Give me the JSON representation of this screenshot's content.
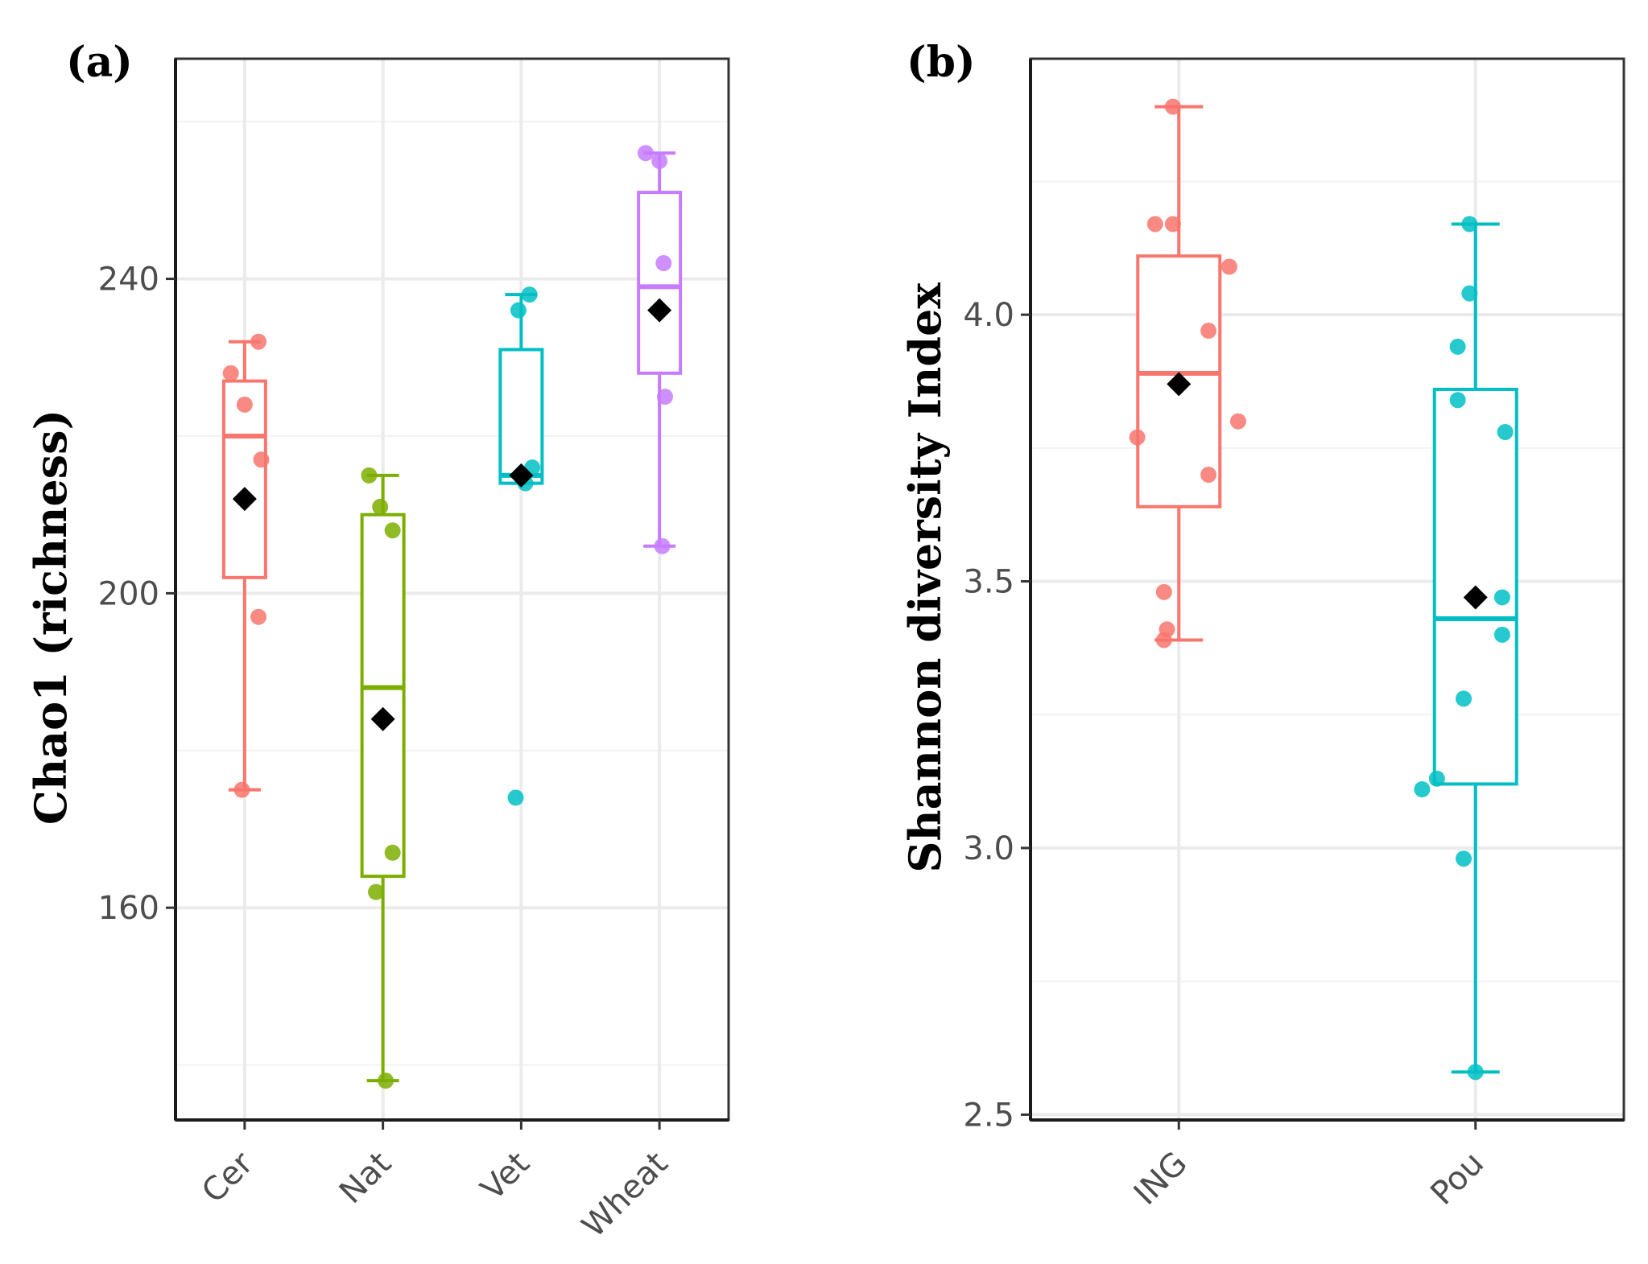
{
  "chart_data": [
    {
      "type": "box",
      "panel_label": "(a)",
      "title": "",
      "xlabel": "",
      "ylabel": "Chao1 (richness)",
      "ylim": [
        133,
        268
      ],
      "yticks": [
        160,
        200,
        240
      ],
      "grid": true,
      "categories": [
        "Cer",
        "Nat",
        "Vet",
        "Wheat"
      ],
      "colors": [
        "#F8766D",
        "#7CAE00",
        "#00BFC4",
        "#C77CFF"
      ],
      "boxes": [
        {
          "category": "Cer",
          "whisker_low": 175,
          "q1": 202,
          "median": 220,
          "q3": 227,
          "whisker_high": 232,
          "mean": 212
        },
        {
          "category": "Nat",
          "whisker_low": 138,
          "q1": 164,
          "median": 188,
          "q3": 210,
          "whisker_high": 215,
          "mean": 184
        },
        {
          "category": "Vet",
          "whisker_low": 214,
          "q1": 214,
          "median": 215,
          "q3": 231,
          "whisker_high": 238,
          "mean": 215
        },
        {
          "category": "Wheat",
          "whisker_low": 206,
          "q1": 228,
          "median": 239,
          "q3": 251,
          "whisker_high": 256,
          "mean": 236
        }
      ],
      "points": [
        {
          "category": "Cer",
          "y": 232,
          "jitter": 0.1
        },
        {
          "category": "Cer",
          "y": 228,
          "jitter": -0.1
        },
        {
          "category": "Cer",
          "y": 224,
          "jitter": 0.0
        },
        {
          "category": "Cer",
          "y": 217,
          "jitter": 0.12
        },
        {
          "category": "Cer",
          "y": 197,
          "jitter": 0.1
        },
        {
          "category": "Cer",
          "y": 175,
          "jitter": -0.02
        },
        {
          "category": "Nat",
          "y": 215,
          "jitter": -0.1
        },
        {
          "category": "Nat",
          "y": 211,
          "jitter": -0.02
        },
        {
          "category": "Nat",
          "y": 208,
          "jitter": 0.07
        },
        {
          "category": "Nat",
          "y": 167,
          "jitter": 0.07
        },
        {
          "category": "Nat",
          "y": 162,
          "jitter": -0.05
        },
        {
          "category": "Nat",
          "y": 138,
          "jitter": 0.02
        },
        {
          "category": "Vet",
          "y": 238,
          "jitter": 0.06
        },
        {
          "category": "Vet",
          "y": 236,
          "jitter": -0.02
        },
        {
          "category": "Vet",
          "y": 216,
          "jitter": 0.08
        },
        {
          "category": "Vet",
          "y": 214,
          "jitter": 0.03
        },
        {
          "category": "Vet",
          "y": 174,
          "jitter": -0.04
        },
        {
          "category": "Wheat",
          "y": 256,
          "jitter": -0.1
        },
        {
          "category": "Wheat",
          "y": 255,
          "jitter": 0.0
        },
        {
          "category": "Wheat",
          "y": 242,
          "jitter": 0.03
        },
        {
          "category": "Wheat",
          "y": 225,
          "jitter": 0.04
        },
        {
          "category": "Wheat",
          "y": 206,
          "jitter": 0.02
        }
      ]
    },
    {
      "type": "box",
      "panel_label": "(b)",
      "title": "",
      "xlabel": "",
      "ylabel": "Shannon diversity Index",
      "ylim": [
        2.49,
        4.48
      ],
      "yticks": [
        2.5,
        3.0,
        3.5,
        4.0
      ],
      "ytick_labels": [
        "2.5",
        "3.0",
        "3.5",
        "4.0"
      ],
      "grid": true,
      "categories": [
        "ING",
        "Pou"
      ],
      "colors": [
        "#F8766D",
        "#00BFC4"
      ],
      "boxes": [
        {
          "category": "ING",
          "whisker_low": 3.39,
          "q1": 3.64,
          "median": 3.89,
          "q3": 4.11,
          "whisker_high": 4.39,
          "mean": 3.87
        },
        {
          "category": "Pou",
          "whisker_low": 2.58,
          "q1": 3.12,
          "median": 3.43,
          "q3": 3.86,
          "whisker_high": 4.17,
          "mean": 3.47
        }
      ],
      "points": [
        {
          "category": "ING",
          "y": 4.39,
          "jitter": -0.02
        },
        {
          "category": "ING",
          "y": 4.17,
          "jitter": -0.08
        },
        {
          "category": "ING",
          "y": 4.17,
          "jitter": -0.02
        },
        {
          "category": "ING",
          "y": 4.09,
          "jitter": 0.17
        },
        {
          "category": "ING",
          "y": 3.97,
          "jitter": 0.1
        },
        {
          "category": "ING",
          "y": 3.8,
          "jitter": 0.2
        },
        {
          "category": "ING",
          "y": 3.77,
          "jitter": -0.14
        },
        {
          "category": "ING",
          "y": 3.7,
          "jitter": 0.1
        },
        {
          "category": "ING",
          "y": 3.48,
          "jitter": -0.05
        },
        {
          "category": "ING",
          "y": 3.41,
          "jitter": -0.04
        },
        {
          "category": "ING",
          "y": 3.39,
          "jitter": -0.05
        },
        {
          "category": "Pou",
          "y": 4.17,
          "jitter": -0.02
        },
        {
          "category": "Pou",
          "y": 4.04,
          "jitter": -0.02
        },
        {
          "category": "Pou",
          "y": 3.94,
          "jitter": -0.06
        },
        {
          "category": "Pou",
          "y": 3.84,
          "jitter": -0.06
        },
        {
          "category": "Pou",
          "y": 3.78,
          "jitter": 0.1
        },
        {
          "category": "Pou",
          "y": 3.47,
          "jitter": 0.09
        },
        {
          "category": "Pou",
          "y": 3.4,
          "jitter": 0.09
        },
        {
          "category": "Pou",
          "y": 3.28,
          "jitter": -0.04
        },
        {
          "category": "Pou",
          "y": 3.13,
          "jitter": -0.13
        },
        {
          "category": "Pou",
          "y": 3.11,
          "jitter": -0.18
        },
        {
          "category": "Pou",
          "y": 2.98,
          "jitter": -0.04
        },
        {
          "category": "Pou",
          "y": 2.58,
          "jitter": 0.0
        }
      ]
    }
  ]
}
